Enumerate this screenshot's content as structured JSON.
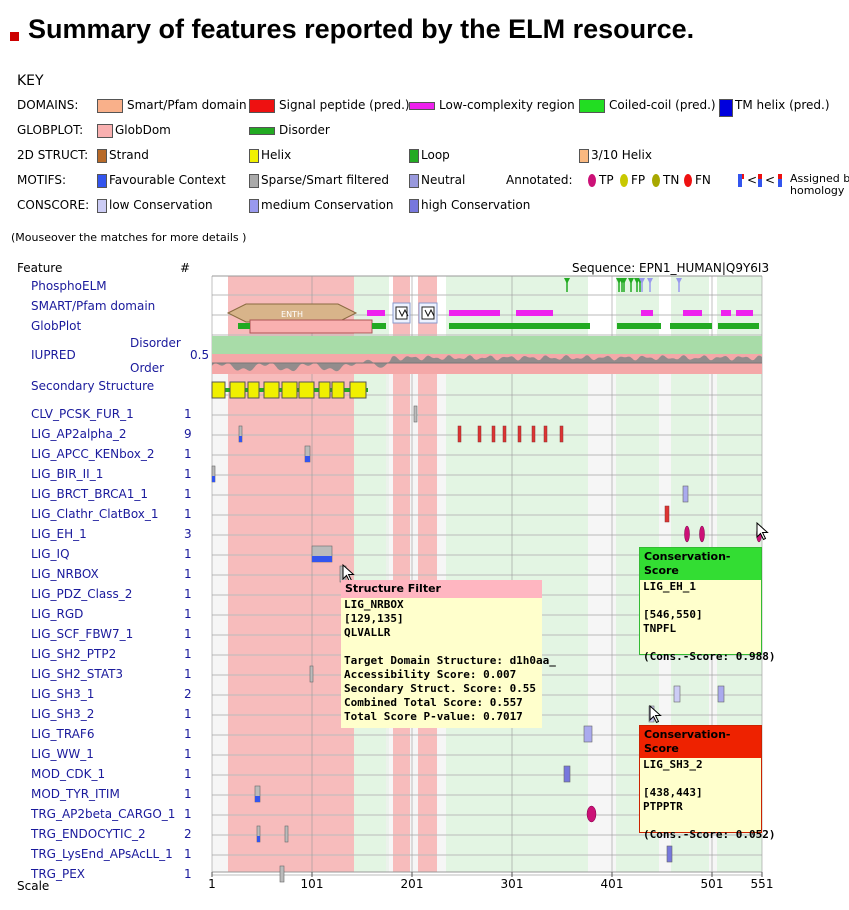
{
  "page": {
    "title": "Summary of features reported by the ELM resource."
  },
  "key": {
    "title": "KEY",
    "rows": [
      {
        "label": "DOMAINS:",
        "items": [
          {
            "text": "Smart/Pfam domain",
            "color": "#f9b08a",
            "shape": "rect"
          },
          {
            "text": "Signal peptide (pred.)",
            "color": "#ee1111",
            "shape": "rect"
          },
          {
            "text": "Low-complexity region",
            "color": "#ee22ee",
            "shape": "bar"
          },
          {
            "text": "Coiled-coil (pred.)",
            "color": "#22dd22",
            "shape": "rect"
          },
          {
            "text": "TM helix (pred.)",
            "color": "#0000dd",
            "shape": "tall"
          }
        ]
      },
      {
        "label": "GLOBPLOT:",
        "items": [
          {
            "text": "GlobDom",
            "color": "#f9b0b0",
            "shape": "square"
          },
          {
            "text": "Disorder",
            "color": "#22aa22",
            "shape": "bar"
          }
        ]
      },
      {
        "label": "2D STRUCT:",
        "items": [
          {
            "text": "Strand",
            "color": "#b86a28",
            "shape": "small"
          },
          {
            "text": "Helix",
            "color": "#f0f000",
            "shape": "small"
          },
          {
            "text": "Loop",
            "color": "#22aa22",
            "shape": "small"
          },
          {
            "text": "3/10 Helix",
            "color": "#f9b880",
            "shape": "small"
          }
        ]
      },
      {
        "label": "MOTIFS:",
        "items": [
          {
            "text": "Favourable Context",
            "color": "#3355ee",
            "shape": "small"
          },
          {
            "text": "Sparse/Smart filtered",
            "color": "#aaaaaa",
            "shape": "small"
          },
          {
            "text": "Neutral",
            "color": "#9999dd",
            "shape": "small"
          }
        ]
      },
      {
        "label": "CONSCORE:",
        "items": [
          {
            "text": "low Conservation",
            "color": "#ccccf5",
            "shape": "small"
          },
          {
            "text": "medium Conservation",
            "color": "#9999ee",
            "shape": "small"
          },
          {
            "text": "high Conservation",
            "color": "#7777dd",
            "shape": "small"
          }
        ]
      }
    ],
    "annotated": {
      "label": "Annotated:",
      "tp": "TP",
      "fp": "FP",
      "tn": "TN",
      "fn": "FN",
      "homology": "Assigned by homology",
      "lt": "<",
      "colors": {
        "tp": "#cc1177",
        "fp": "#c8c800",
        "tn": "#a8a800",
        "fn": "#ee1111"
      }
    }
  },
  "mouseover_note": "(Mouseover the matches for more details )",
  "viz": {
    "feature_header": "Feature",
    "count_header": "#",
    "sequence": "Sequence: EPN1_HUMAN|Q9Y6I3",
    "scale_label": "Scale",
    "scale_ticks": [
      "1",
      "101",
      "201",
      "301",
      "401",
      "501",
      "551"
    ],
    "seq_length": 551,
    "iupred": {
      "label": "IUPRED",
      "disorder": "Disorder",
      "order": "Order",
      "threshold": "0.5"
    },
    "enth_label": "ENTH",
    "tracks": [
      {
        "name": "PhosphoELM",
        "count": ""
      },
      {
        "name": "SMART/Pfam domain",
        "count": ""
      },
      {
        "name": "GlobPlot",
        "count": ""
      },
      {
        "name": "IUPRED",
        "count": ""
      },
      {
        "name": "Secondary Structure",
        "count": ""
      }
    ],
    "features": [
      {
        "name": "CLV_PCSK_FUR_1",
        "count": "1"
      },
      {
        "name": "LIG_AP2alpha_2",
        "count": "9"
      },
      {
        "name": "LIG_APCC_KENbox_2",
        "count": "1"
      },
      {
        "name": "LIG_BIR_II_1",
        "count": "1"
      },
      {
        "name": "LIG_BRCT_BRCA1_1",
        "count": "1"
      },
      {
        "name": "LIG_Clathr_ClatBox_1",
        "count": "1"
      },
      {
        "name": "LIG_EH_1",
        "count": "3"
      },
      {
        "name": "LIG_IQ",
        "count": "1"
      },
      {
        "name": "LIG_NRBOX",
        "count": "1"
      },
      {
        "name": "LIG_PDZ_Class_2",
        "count": "1"
      },
      {
        "name": "LIG_RGD",
        "count": "1"
      },
      {
        "name": "LIG_SCF_FBW7_1",
        "count": "1"
      },
      {
        "name": "LIG_SH2_PTP2",
        "count": "1"
      },
      {
        "name": "LIG_SH2_STAT3",
        "count": "1"
      },
      {
        "name": "LIG_SH3_1",
        "count": "2"
      },
      {
        "name": "LIG_SH3_2",
        "count": "1"
      },
      {
        "name": "LIG_TRAF6",
        "count": "1"
      },
      {
        "name": "LIG_WW_1",
        "count": "1"
      },
      {
        "name": "MOD_CDK_1",
        "count": "1"
      },
      {
        "name": "MOD_TYR_ITIM",
        "count": "1"
      },
      {
        "name": "TRG_AP2beta_CARGO_1",
        "count": "1"
      },
      {
        "name": "TRG_ENDOCYTIC_2",
        "count": "2"
      },
      {
        "name": "TRG_LysEnd_APsAcLL_1",
        "count": "1"
      },
      {
        "name": "TRG_PEX",
        "count": "1"
      }
    ],
    "phospho_sites": [
      356,
      408,
      411,
      413,
      420,
      426,
      429,
      431,
      439,
      468
    ],
    "background_regions": [
      {
        "kind": "globular",
        "start": 17,
        "end": 143
      },
      {
        "kind": "pale-green",
        "start": 143,
        "end": 178
      },
      {
        "kind": "globular",
        "start": 182,
        "end": 199
      },
      {
        "kind": "globular",
        "start": 207,
        "end": 226
      },
      {
        "kind": "pale-green",
        "start": 235,
        "end": 377
      },
      {
        "kind": "pale-green",
        "start": 405,
        "end": 448
      },
      {
        "kind": "pale-green",
        "start": 460,
        "end": 498
      },
      {
        "kind": "pale-green",
        "start": 506,
        "end": 551
      }
    ],
    "domains": [
      {
        "type": "smart",
        "name": "ENTH",
        "start": 17,
        "end": 145
      },
      {
        "type": "lowcomplexity",
        "start": 156,
        "end": 174
      },
      {
        "type": "tm-box",
        "start": 182,
        "end": 199
      },
      {
        "type": "tm-box",
        "start": 208,
        "end": 226
      },
      {
        "type": "lowcomplexity",
        "start": 238,
        "end": 289
      },
      {
        "type": "lowcomplexity",
        "start": 305,
        "end": 342
      },
      {
        "type": "lowcomplexity",
        "start": 430,
        "end": 442
      },
      {
        "type": "lowcomplexity",
        "start": 472,
        "end": 491
      },
      {
        "type": "lowcomplexity",
        "start": 510,
        "end": 520
      },
      {
        "type": "lowcomplexity",
        "start": 525,
        "end": 542
      }
    ],
    "globplot": {
      "globdom": [
        {
          "start": 39,
          "end": 161
        }
      ],
      "disorder": [
        {
          "start": 27,
          "end": 39
        },
        {
          "start": 161,
          "end": 175
        },
        {
          "start": 238,
          "end": 379
        },
        {
          "start": 406,
          "end": 450
        },
        {
          "start": 459,
          "end": 501
        },
        {
          "start": 507,
          "end": 548
        }
      ]
    },
    "secondary_structure": {
      "loop": {
        "start": 1,
        "end": 157
      },
      "helices": [
        {
          "start": 1,
          "end": 14
        },
        {
          "start": 19,
          "end": 34
        },
        {
          "start": 37,
          "end": 48
        },
        {
          "start": 53,
          "end": 68
        },
        {
          "start": 71,
          "end": 86
        },
        {
          "start": 88,
          "end": 103
        },
        {
          "start": 108,
          "end": 119
        },
        {
          "start": 121,
          "end": 133
        },
        {
          "start": 139,
          "end": 155
        }
      ]
    },
    "matches": [
      {
        "row": 0,
        "start": 203,
        "end": 206,
        "type": "filtered"
      },
      {
        "row": 1,
        "start": 28,
        "end": 31,
        "type": "filtered-context"
      },
      {
        "row": 1,
        "start": 247,
        "end": 249,
        "type": "fn"
      },
      {
        "row": 1,
        "start": 267,
        "end": 269,
        "type": "fn"
      },
      {
        "row": 1,
        "start": 281,
        "end": 283,
        "type": "fn"
      },
      {
        "row": 1,
        "start": 292,
        "end": 294,
        "type": "fn"
      },
      {
        "row": 1,
        "start": 307,
        "end": 309,
        "type": "fn"
      },
      {
        "row": 1,
        "start": 321,
        "end": 323,
        "type": "fn"
      },
      {
        "row": 1,
        "start": 333,
        "end": 335,
        "type": "fn"
      },
      {
        "row": 1,
        "start": 349,
        "end": 351,
        "type": "fn"
      },
      {
        "row": 2,
        "start": 94,
        "end": 99,
        "type": "filtered-context"
      },
      {
        "row": 3,
        "start": 1,
        "end": 4,
        "type": "filtered-context"
      },
      {
        "row": 4,
        "start": 472,
        "end": 477,
        "type": "conservation-medium"
      },
      {
        "row": 5,
        "start": 454,
        "end": 458,
        "type": "fn"
      },
      {
        "row": 6,
        "start": 474,
        "end": 478,
        "type": "tp"
      },
      {
        "row": 6,
        "start": 489,
        "end": 493,
        "type": "tp"
      },
      {
        "row": 6,
        "start": 546,
        "end": 550,
        "type": "tp"
      },
      {
        "row": 7,
        "start": 101,
        "end": 121,
        "type": "filtered-context"
      },
      {
        "row": 8,
        "start": 129,
        "end": 135,
        "type": "filtered"
      },
      {
        "row": 13,
        "start": 99,
        "end": 102,
        "type": "filtered"
      },
      {
        "row": 14,
        "start": 463,
        "end": 469,
        "type": "conservation-low"
      },
      {
        "row": 14,
        "start": 507,
        "end": 513,
        "type": "conservation-medium"
      },
      {
        "row": 15,
        "start": 438,
        "end": 443,
        "type": "conservation-low"
      },
      {
        "row": 16,
        "start": 373,
        "end": 381,
        "type": "conservation-medium"
      },
      {
        "row": 18,
        "start": 353,
        "end": 359,
        "type": "conservation-high"
      },
      {
        "row": 19,
        "start": 44,
        "end": 49,
        "type": "filtered-context"
      },
      {
        "row": 20,
        "start": 376,
        "end": 385,
        "type": "tp"
      },
      {
        "row": 21,
        "start": 46,
        "end": 49,
        "type": "filtered-context"
      },
      {
        "row": 21,
        "start": 74,
        "end": 77,
        "type": "filtered"
      },
      {
        "row": 22,
        "start": 456,
        "end": 461,
        "type": "conservation-high"
      },
      {
        "row": 23,
        "start": 69,
        "end": 73,
        "type": "filtered"
      }
    ],
    "tooltips": {
      "structure": {
        "header": "Structure Filter",
        "header_color": "#ffb6c1",
        "lines": [
          "LIG_NRBOX",
          "[129,135]",
          "QLVALLR",
          "",
          "Target Domain Structure: d1h0aa_",
          "Accessibility Score: 0.007",
          "Secondary Struct. Score: 0.55",
          "Combined Total Score: 0.557",
          "Total Score P-value: 0.7017"
        ]
      },
      "cons_eh": {
        "header": "Conservation-Score",
        "header_color": "#33dd33",
        "lines": [
          "LIG_EH_1",
          "",
          "[546,550]",
          "TNPFL",
          "",
          "(Cons.-Score: 0.988)"
        ]
      },
      "cons_sh3": {
        "header": "Conservation-Score",
        "header_color": "#ee2200",
        "lines": [
          "LIG_SH3_2",
          "",
          "[438,443]",
          "PTPPTR",
          "",
          "(Cons.-Score: 0.052)"
        ]
      }
    }
  }
}
